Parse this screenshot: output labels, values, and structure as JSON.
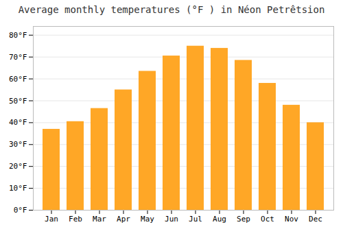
{
  "chart_data": {
    "type": "bar",
    "title": "Average monthly temperatures (°F ) in Néon Petrêtsion",
    "categories": [
      "Jan",
      "Feb",
      "Mar",
      "Apr",
      "May",
      "Jun",
      "Jul",
      "Aug",
      "Sep",
      "Oct",
      "Nov",
      "Dec"
    ],
    "values": [
      37,
      40.5,
      46.5,
      55,
      63.5,
      70.5,
      75,
      74,
      68.5,
      58,
      48,
      40
    ],
    "color": "#FFA726",
    "ylim": [
      0,
      84
    ],
    "yticks": [
      {
        "value": 0,
        "label": "0°F"
      },
      {
        "value": 10,
        "label": "10°F"
      },
      {
        "value": 20,
        "label": "20°F"
      },
      {
        "value": 30,
        "label": "30°F"
      },
      {
        "value": 40,
        "label": "40°F"
      },
      {
        "value": 50,
        "label": "50°F"
      },
      {
        "value": 60,
        "label": "60°F"
      },
      {
        "value": 70,
        "label": "70°F"
      },
      {
        "value": 80,
        "label": "80°F"
      }
    ],
    "grid": true
  }
}
